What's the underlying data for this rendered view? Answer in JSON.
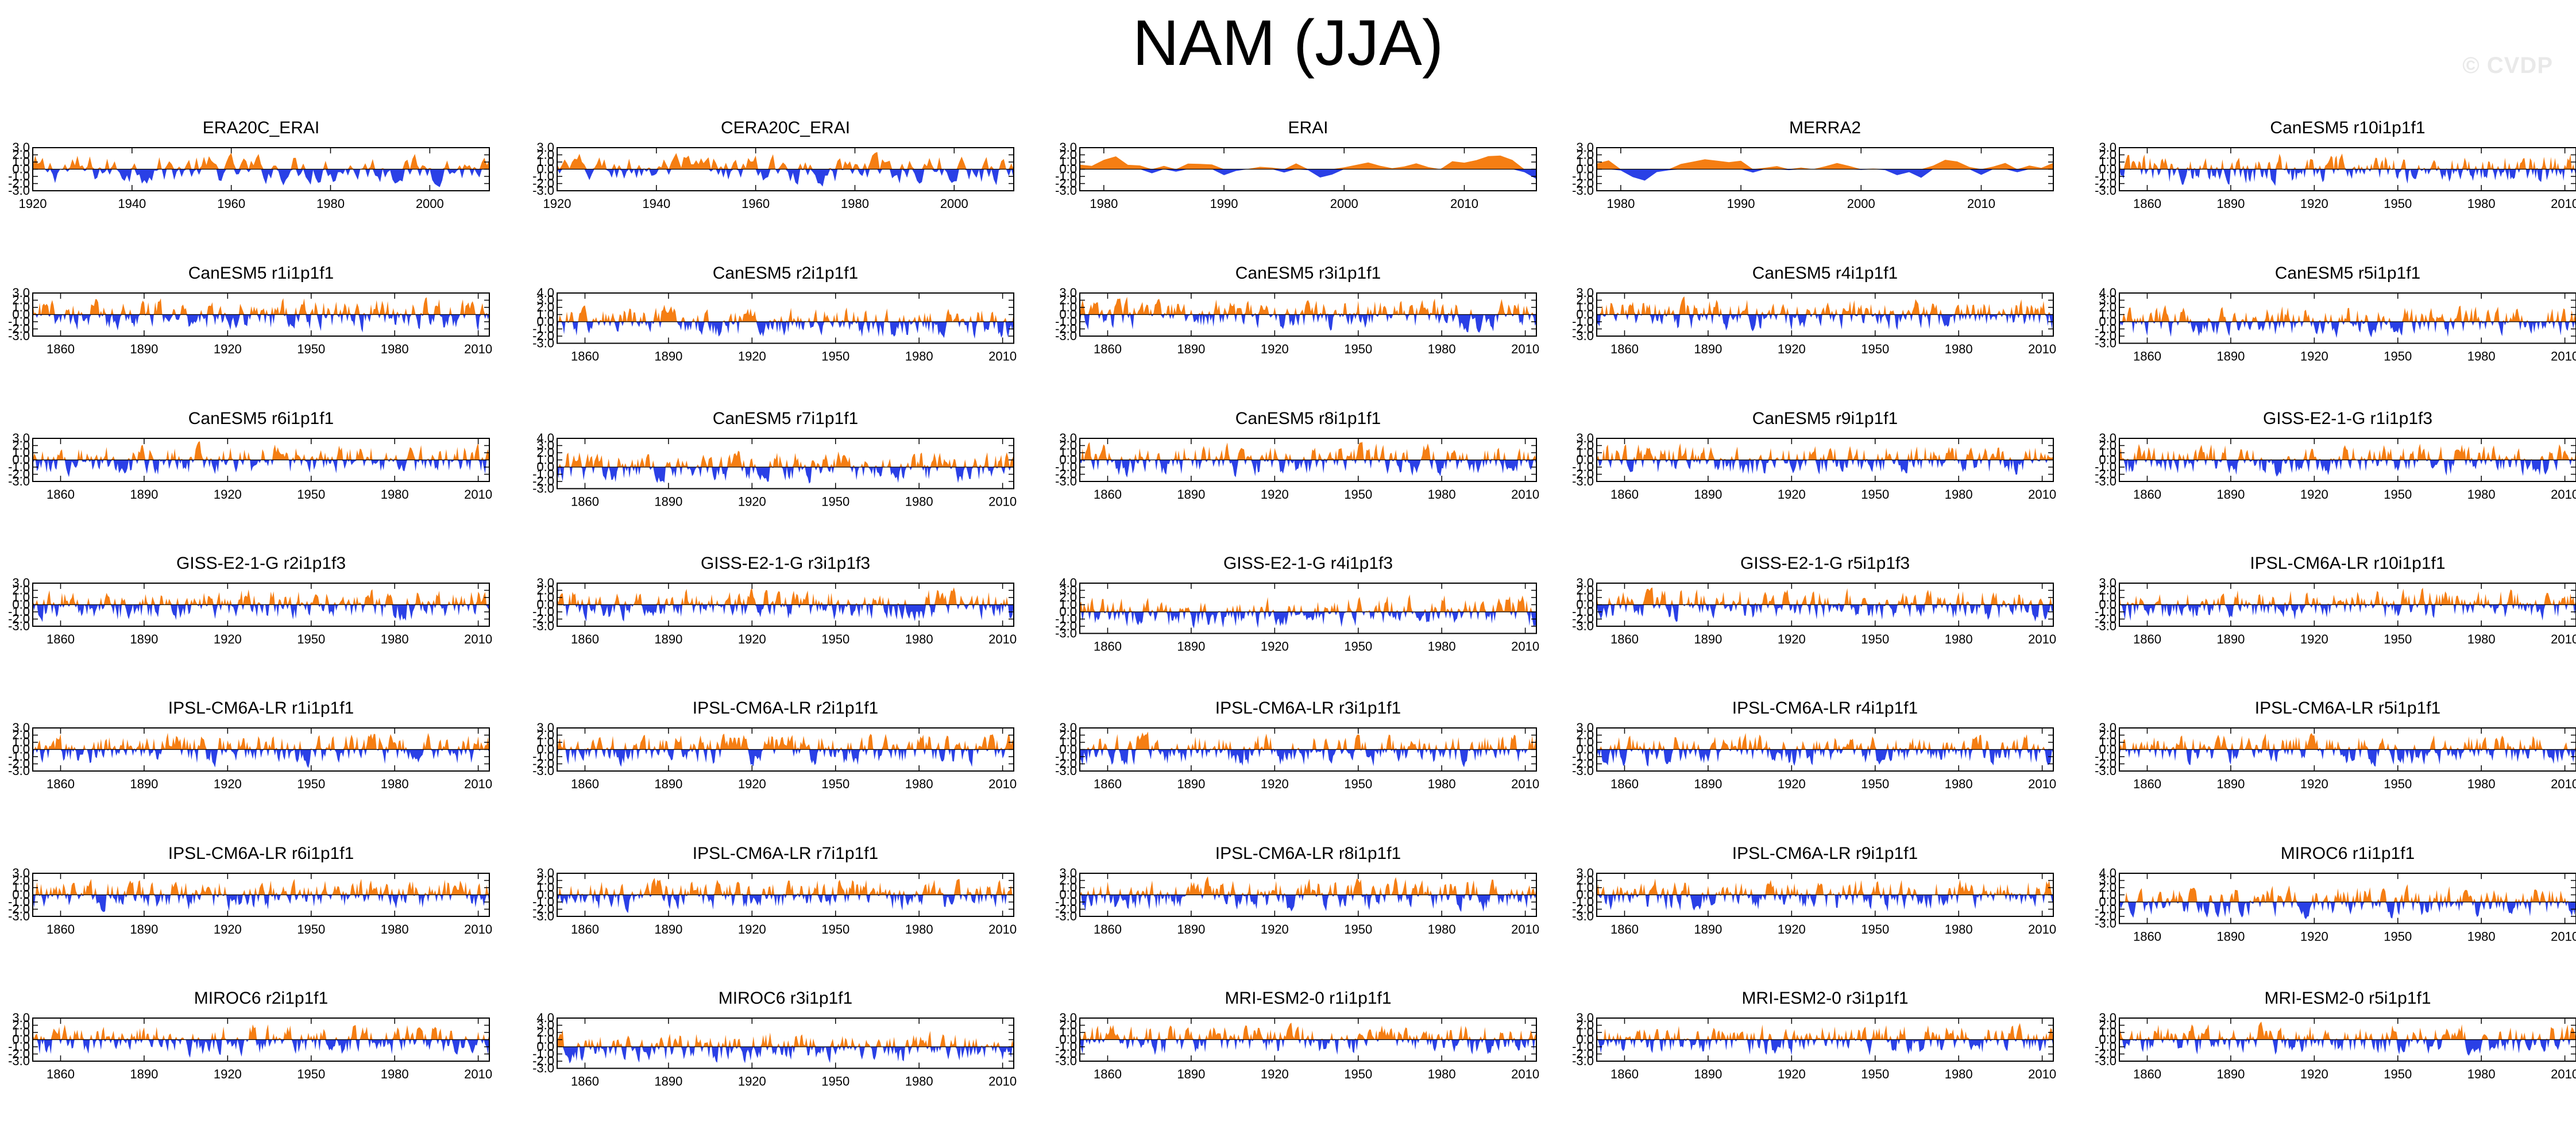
{
  "figure": {
    "title": "NAM (JJA)",
    "watermark": "© CVDP"
  },
  "colors": {
    "positive": "#f57e13",
    "negative": "#2a40e6",
    "frame": "#000000"
  },
  "chart_data": [
    {
      "type": "area",
      "title": "ERA20C_ERAI",
      "xlim": [
        1920,
        2012
      ],
      "xticks": [
        "1920",
        "1940",
        "1960",
        "1980",
        "2000"
      ],
      "ylim": [
        -3,
        3
      ],
      "yticks": [
        "3.0",
        "2.0",
        "1.0",
        "0.0",
        "-1.0",
        "-2.0",
        "-3.0"
      ]
    },
    {
      "type": "area",
      "title": "CERA20C_ERAI",
      "xlim": [
        1920,
        2012
      ],
      "xticks": [
        "1920",
        "1940",
        "1960",
        "1980",
        "2000"
      ],
      "ylim": [
        -3,
        3
      ],
      "yticks": [
        "3.0",
        "2.0",
        "1.0",
        "0.0",
        "-1.0",
        "-2.0",
        "-3.0"
      ]
    },
    {
      "type": "area",
      "title": "ERAI",
      "xlim": [
        1978,
        2016
      ],
      "xticks": [
        "1980",
        "1990",
        "2000",
        "2010"
      ],
      "ylim": [
        -3,
        3
      ],
      "yticks": [
        "3.0",
        "2.0",
        "1.0",
        "0.0",
        "-1.0",
        "-2.0",
        "-3.0"
      ]
    },
    {
      "type": "area",
      "title": "MERRA2",
      "xlim": [
        1978,
        2016
      ],
      "xticks": [
        "1980",
        "1990",
        "2000",
        "2010"
      ],
      "ylim": [
        -3,
        3
      ],
      "yticks": [
        "3.0",
        "2.0",
        "1.0",
        "0.0",
        "-1.0",
        "-2.0",
        "-3.0"
      ]
    },
    {
      "type": "area",
      "title": "CanESM5 r10i1p1f1",
      "xlim": [
        1850,
        2014
      ],
      "xticks": [
        "1860",
        "1890",
        "1920",
        "1950",
        "1980",
        "2010"
      ],
      "ylim": [
        -3,
        3
      ],
      "yticks": [
        "3.0",
        "2.0",
        "1.0",
        "0.0",
        "-1.0",
        "-2.0",
        "-3.0"
      ]
    },
    {
      "type": "area",
      "title": "CanESM5 r1i1p1f1",
      "xlim": [
        1850,
        2014
      ],
      "xticks": [
        "1860",
        "1890",
        "1920",
        "1950",
        "1980",
        "2010"
      ],
      "ylim": [
        -3,
        3
      ],
      "yticks": [
        "3.0",
        "2.0",
        "1.0",
        "0.0",
        "-1.0",
        "-2.0",
        "-3.0"
      ]
    },
    {
      "type": "area",
      "title": "CanESM5 r2i1p1f1",
      "xlim": [
        1850,
        2014
      ],
      "xticks": [
        "1860",
        "1890",
        "1920",
        "1950",
        "1980",
        "2010"
      ],
      "ylim": [
        -3,
        4
      ],
      "yticks": [
        "4.0",
        "3.0",
        "2.0",
        "1.0",
        "0.0",
        "-1.0",
        "-2.0",
        "-3.0"
      ]
    },
    {
      "type": "area",
      "title": "CanESM5 r3i1p1f1",
      "xlim": [
        1850,
        2014
      ],
      "xticks": [
        "1860",
        "1890",
        "1920",
        "1950",
        "1980",
        "2010"
      ],
      "ylim": [
        -3,
        3
      ],
      "yticks": [
        "3.0",
        "2.0",
        "1.0",
        "0.0",
        "-1.0",
        "-2.0",
        "-3.0"
      ]
    },
    {
      "type": "area",
      "title": "CanESM5 r4i1p1f1",
      "xlim": [
        1850,
        2014
      ],
      "xticks": [
        "1860",
        "1890",
        "1920",
        "1950",
        "1980",
        "2010"
      ],
      "ylim": [
        -3,
        3
      ],
      "yticks": [
        "3.0",
        "2.0",
        "1.0",
        "0.0",
        "-1.0",
        "-2.0",
        "-3.0"
      ]
    },
    {
      "type": "area",
      "title": "CanESM5 r5i1p1f1",
      "xlim": [
        1850,
        2014
      ],
      "xticks": [
        "1860",
        "1890",
        "1920",
        "1950",
        "1980",
        "2010"
      ],
      "ylim": [
        -3,
        4
      ],
      "yticks": [
        "4.0",
        "3.0",
        "2.0",
        "1.0",
        "0.0",
        "-1.0",
        "-2.0",
        "-3.0"
      ]
    },
    {
      "type": "area",
      "title": "CanESM5 r6i1p1f1",
      "xlim": [
        1850,
        2014
      ],
      "xticks": [
        "1860",
        "1890",
        "1920",
        "1950",
        "1980",
        "2010"
      ],
      "ylim": [
        -3,
        3
      ],
      "yticks": [
        "3.0",
        "2.0",
        "1.0",
        "0.0",
        "-1.0",
        "-2.0",
        "-3.0"
      ]
    },
    {
      "type": "area",
      "title": "CanESM5 r7i1p1f1",
      "xlim": [
        1850,
        2014
      ],
      "xticks": [
        "1860",
        "1890",
        "1920",
        "1950",
        "1980",
        "2010"
      ],
      "ylim": [
        -3,
        4
      ],
      "yticks": [
        "4.0",
        "3.0",
        "2.0",
        "1.0",
        "0.0",
        "-1.0",
        "-2.0",
        "-3.0"
      ]
    },
    {
      "type": "area",
      "title": "CanESM5 r8i1p1f1",
      "xlim": [
        1850,
        2014
      ],
      "xticks": [
        "1860",
        "1890",
        "1920",
        "1950",
        "1980",
        "2010"
      ],
      "ylim": [
        -3,
        3
      ],
      "yticks": [
        "3.0",
        "2.0",
        "1.0",
        "0.0",
        "-1.0",
        "-2.0",
        "-3.0"
      ]
    },
    {
      "type": "area",
      "title": "CanESM5 r9i1p1f1",
      "xlim": [
        1850,
        2014
      ],
      "xticks": [
        "1860",
        "1890",
        "1920",
        "1950",
        "1980",
        "2010"
      ],
      "ylim": [
        -3,
        3
      ],
      "yticks": [
        "3.0",
        "2.0",
        "1.0",
        "0.0",
        "-1.0",
        "-2.0",
        "-3.0"
      ]
    },
    {
      "type": "area",
      "title": "GISS-E2-1-G r1i1p1f3",
      "xlim": [
        1850,
        2014
      ],
      "xticks": [
        "1860",
        "1890",
        "1920",
        "1950",
        "1980",
        "2010"
      ],
      "ylim": [
        -3,
        3
      ],
      "yticks": [
        "3.0",
        "2.0",
        "1.0",
        "0.0",
        "-1.0",
        "-2.0",
        "-3.0"
      ]
    },
    {
      "type": "area",
      "title": "GISS-E2-1-G r2i1p1f3",
      "xlim": [
        1850,
        2014
      ],
      "xticks": [
        "1860",
        "1890",
        "1920",
        "1950",
        "1980",
        "2010"
      ],
      "ylim": [
        -3,
        3
      ],
      "yticks": [
        "3.0",
        "2.0",
        "1.0",
        "0.0",
        "-1.0",
        "-2.0",
        "-3.0"
      ]
    },
    {
      "type": "area",
      "title": "GISS-E2-1-G r3i1p1f3",
      "xlim": [
        1850,
        2014
      ],
      "xticks": [
        "1860",
        "1890",
        "1920",
        "1950",
        "1980",
        "2010"
      ],
      "ylim": [
        -3,
        3
      ],
      "yticks": [
        "3.0",
        "2.0",
        "1.0",
        "0.0",
        "-1.0",
        "-2.0",
        "-3.0"
      ]
    },
    {
      "type": "area",
      "title": "GISS-E2-1-G r4i1p1f3",
      "xlim": [
        1850,
        2014
      ],
      "xticks": [
        "1860",
        "1890",
        "1920",
        "1950",
        "1980",
        "2010"
      ],
      "ylim": [
        -3,
        4
      ],
      "yticks": [
        "4.0",
        "3.0",
        "2.0",
        "1.0",
        "0.0",
        "-1.0",
        "-2.0",
        "-3.0"
      ]
    },
    {
      "type": "area",
      "title": "GISS-E2-1-G r5i1p1f3",
      "xlim": [
        1850,
        2014
      ],
      "xticks": [
        "1860",
        "1890",
        "1920",
        "1950",
        "1980",
        "2010"
      ],
      "ylim": [
        -3,
        3
      ],
      "yticks": [
        "3.0",
        "2.0",
        "1.0",
        "0.0",
        "-1.0",
        "-2.0",
        "-3.0"
      ]
    },
    {
      "type": "area",
      "title": "IPSL-CM6A-LR r10i1p1f1",
      "xlim": [
        1850,
        2014
      ],
      "xticks": [
        "1860",
        "1890",
        "1920",
        "1950",
        "1980",
        "2010"
      ],
      "ylim": [
        -3,
        3
      ],
      "yticks": [
        "3.0",
        "2.0",
        "1.0",
        "0.0",
        "-1.0",
        "-2.0",
        "-3.0"
      ]
    },
    {
      "type": "area",
      "title": "IPSL-CM6A-LR r1i1p1f1",
      "xlim": [
        1850,
        2014
      ],
      "xticks": [
        "1860",
        "1890",
        "1920",
        "1950",
        "1980",
        "2010"
      ],
      "ylim": [
        -3,
        3
      ],
      "yticks": [
        "3.0",
        "2.0",
        "1.0",
        "0.0",
        "-1.0",
        "-2.0",
        "-3.0"
      ]
    },
    {
      "type": "area",
      "title": "IPSL-CM6A-LR r2i1p1f1",
      "xlim": [
        1850,
        2014
      ],
      "xticks": [
        "1860",
        "1890",
        "1920",
        "1950",
        "1980",
        "2010"
      ],
      "ylim": [
        -3,
        3
      ],
      "yticks": [
        "3.0",
        "2.0",
        "1.0",
        "0.0",
        "-1.0",
        "-2.0",
        "-3.0"
      ]
    },
    {
      "type": "area",
      "title": "IPSL-CM6A-LR r3i1p1f1",
      "xlim": [
        1850,
        2014
      ],
      "xticks": [
        "1860",
        "1890",
        "1920",
        "1950",
        "1980",
        "2010"
      ],
      "ylim": [
        -3,
        3
      ],
      "yticks": [
        "3.0",
        "2.0",
        "1.0",
        "0.0",
        "-1.0",
        "-2.0",
        "-3.0"
      ]
    },
    {
      "type": "area",
      "title": "IPSL-CM6A-LR r4i1p1f1",
      "xlim": [
        1850,
        2014
      ],
      "xticks": [
        "1860",
        "1890",
        "1920",
        "1950",
        "1980",
        "2010"
      ],
      "ylim": [
        -3,
        3
      ],
      "yticks": [
        "3.0",
        "2.0",
        "1.0",
        "0.0",
        "-1.0",
        "-2.0",
        "-3.0"
      ]
    },
    {
      "type": "area",
      "title": "IPSL-CM6A-LR r5i1p1f1",
      "xlim": [
        1850,
        2014
      ],
      "xticks": [
        "1860",
        "1890",
        "1920",
        "1950",
        "1980",
        "2010"
      ],
      "ylim": [
        -3,
        3
      ],
      "yticks": [
        "3.0",
        "2.0",
        "1.0",
        "0.0",
        "-1.0",
        "-2.0",
        "-3.0"
      ]
    },
    {
      "type": "area",
      "title": "IPSL-CM6A-LR r6i1p1f1",
      "xlim": [
        1850,
        2014
      ],
      "xticks": [
        "1860",
        "1890",
        "1920",
        "1950",
        "1980",
        "2010"
      ],
      "ylim": [
        -3,
        3
      ],
      "yticks": [
        "3.0",
        "2.0",
        "1.0",
        "0.0",
        "-1.0",
        "-2.0",
        "-3.0"
      ]
    },
    {
      "type": "area",
      "title": "IPSL-CM6A-LR r7i1p1f1",
      "xlim": [
        1850,
        2014
      ],
      "xticks": [
        "1860",
        "1890",
        "1920",
        "1950",
        "1980",
        "2010"
      ],
      "ylim": [
        -3,
        3
      ],
      "yticks": [
        "3.0",
        "2.0",
        "1.0",
        "0.0",
        "-1.0",
        "-2.0",
        "-3.0"
      ]
    },
    {
      "type": "area",
      "title": "IPSL-CM6A-LR r8i1p1f1",
      "xlim": [
        1850,
        2014
      ],
      "xticks": [
        "1860",
        "1890",
        "1920",
        "1950",
        "1980",
        "2010"
      ],
      "ylim": [
        -3,
        3
      ],
      "yticks": [
        "3.0",
        "2.0",
        "1.0",
        "0.0",
        "-1.0",
        "-2.0",
        "-3.0"
      ]
    },
    {
      "type": "area",
      "title": "IPSL-CM6A-LR r9i1p1f1",
      "xlim": [
        1850,
        2014
      ],
      "xticks": [
        "1860",
        "1890",
        "1920",
        "1950",
        "1980",
        "2010"
      ],
      "ylim": [
        -3,
        3
      ],
      "yticks": [
        "3.0",
        "2.0",
        "1.0",
        "0.0",
        "-1.0",
        "-2.0",
        "-3.0"
      ]
    },
    {
      "type": "area",
      "title": "MIROC6 r1i1p1f1",
      "xlim": [
        1850,
        2014
      ],
      "xticks": [
        "1860",
        "1890",
        "1920",
        "1950",
        "1980",
        "2010"
      ],
      "ylim": [
        -3,
        4
      ],
      "yticks": [
        "4.0",
        "3.0",
        "2.0",
        "1.0",
        "0.0",
        "-1.0",
        "-2.0",
        "-3.0"
      ]
    },
    {
      "type": "area",
      "title": "MIROC6 r2i1p1f1",
      "xlim": [
        1850,
        2014
      ],
      "xticks": [
        "1860",
        "1890",
        "1920",
        "1950",
        "1980",
        "2010"
      ],
      "ylim": [
        -3,
        3
      ],
      "yticks": [
        "3.0",
        "2.0",
        "1.0",
        "0.0",
        "-1.0",
        "-2.0",
        "-3.0"
      ]
    },
    {
      "type": "area",
      "title": "MIROC6 r3i1p1f1",
      "xlim": [
        1850,
        2014
      ],
      "xticks": [
        "1860",
        "1890",
        "1920",
        "1950",
        "1980",
        "2010"
      ],
      "ylim": [
        -3,
        4
      ],
      "yticks": [
        "4.0",
        "3.0",
        "2.0",
        "1.0",
        "0.0",
        "-1.0",
        "-2.0",
        "-3.0"
      ]
    },
    {
      "type": "area",
      "title": "MRI-ESM2-0 r1i1p1f1",
      "xlim": [
        1850,
        2014
      ],
      "xticks": [
        "1860",
        "1890",
        "1920",
        "1950",
        "1980",
        "2010"
      ],
      "ylim": [
        -3,
        3
      ],
      "yticks": [
        "3.0",
        "2.0",
        "1.0",
        "0.0",
        "-1.0",
        "-2.0",
        "-3.0"
      ]
    },
    {
      "type": "area",
      "title": "MRI-ESM2-0 r3i1p1f1",
      "xlim": [
        1850,
        2014
      ],
      "xticks": [
        "1860",
        "1890",
        "1920",
        "1950",
        "1980",
        "2010"
      ],
      "ylim": [
        -3,
        3
      ],
      "yticks": [
        "3.0",
        "2.0",
        "1.0",
        "0.0",
        "-1.0",
        "-2.0",
        "-3.0"
      ]
    },
    {
      "type": "area",
      "title": "MRI-ESM2-0 r5i1p1f1",
      "xlim": [
        1850,
        2014
      ],
      "xticks": [
        "1860",
        "1890",
        "1920",
        "1950",
        "1980",
        "2010"
      ],
      "ylim": [
        -3,
        3
      ],
      "yticks": [
        "3.0",
        "2.0",
        "1.0",
        "0.0",
        "-1.0",
        "-2.0",
        "-3.0"
      ]
    }
  ]
}
